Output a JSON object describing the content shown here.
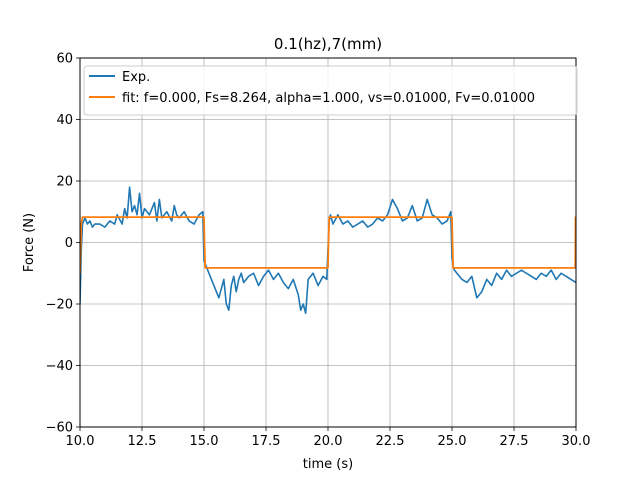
{
  "chart_data": {
    "type": "line",
    "title": "0.1(hz),7(mm)",
    "xlabel": "time (s)",
    "ylabel": "Force (N)",
    "xlim": [
      10.0,
      30.0
    ],
    "ylim": [
      -60,
      60
    ],
    "xticks": [
      10.0,
      12.5,
      15.0,
      17.5,
      20.0,
      22.5,
      25.0,
      27.5,
      30.0
    ],
    "xtick_labels": [
      "10.0",
      "12.5",
      "15.0",
      "17.5",
      "20.0",
      "22.5",
      "25.0",
      "27.5",
      "30.0"
    ],
    "yticks": [
      -60,
      -40,
      -20,
      0,
      20,
      40,
      60
    ],
    "ytick_labels": [
      "−60",
      "−40",
      "−20",
      "0",
      "20",
      "40",
      "60"
    ],
    "grid": true,
    "legend_position": "top-left",
    "series": [
      {
        "name": "Exp.",
        "color": "#1f77b4",
        "x": [
          10.0,
          10.05,
          10.1,
          10.2,
          10.3,
          10.4,
          10.5,
          10.6,
          10.8,
          11.0,
          11.2,
          11.4,
          11.5,
          11.7,
          11.8,
          11.9,
          12.0,
          12.1,
          12.2,
          12.3,
          12.4,
          12.5,
          12.6,
          12.8,
          13.0,
          13.1,
          13.2,
          13.3,
          13.5,
          13.7,
          13.8,
          13.9,
          14.0,
          14.2,
          14.4,
          14.6,
          14.8,
          14.95,
          15.0,
          15.05,
          15.1,
          15.2,
          15.4,
          15.6,
          15.8,
          15.9,
          16.0,
          16.1,
          16.2,
          16.3,
          16.4,
          16.5,
          16.6,
          16.8,
          17.0,
          17.2,
          17.4,
          17.6,
          17.8,
          18.0,
          18.2,
          18.4,
          18.6,
          18.8,
          18.9,
          19.0,
          19.1,
          19.2,
          19.4,
          19.6,
          19.8,
          19.95,
          20.0,
          20.05,
          20.1,
          20.2,
          20.4,
          20.6,
          20.8,
          21.0,
          21.2,
          21.4,
          21.6,
          21.8,
          22.0,
          22.2,
          22.4,
          22.6,
          22.8,
          23.0,
          23.2,
          23.4,
          23.6,
          23.8,
          24.0,
          24.2,
          24.4,
          24.6,
          24.8,
          24.95,
          25.0,
          25.05,
          25.1,
          25.2,
          25.4,
          25.6,
          25.8,
          26.0,
          26.2,
          26.4,
          26.6,
          26.8,
          27.0,
          27.2,
          27.4,
          27.6,
          27.8,
          28.0,
          28.2,
          28.4,
          28.6,
          28.8,
          29.0,
          29.2,
          29.4,
          29.6,
          29.8,
          30.0
        ],
        "y": [
          -20,
          -3,
          6,
          8,
          6,
          7,
          5,
          6,
          6,
          5,
          7,
          6,
          9,
          6,
          11,
          8,
          18,
          10,
          12,
          9,
          16,
          8,
          11,
          9,
          13,
          7,
          14,
          8,
          10,
          7,
          12,
          9,
          8,
          10,
          7,
          6,
          9,
          10,
          -6,
          -7,
          -8,
          -10,
          -14,
          -18,
          -12,
          -20,
          -22,
          -14,
          -11,
          -16,
          -12,
          -10,
          -13,
          -11,
          -10,
          -14,
          -11,
          -9,
          -12,
          -10,
          -13,
          -15,
          -12,
          -17,
          -22,
          -20,
          -23,
          -12,
          -10,
          -14,
          -11,
          -12,
          -2,
          7,
          9,
          6,
          9,
          6,
          7,
          5,
          6,
          7,
          5,
          6,
          8,
          7,
          9,
          14,
          11,
          7,
          8,
          12,
          7,
          8,
          14,
          9,
          8,
          6,
          7,
          10,
          -5,
          -8,
          -9,
          -10,
          -12,
          -13,
          -11,
          -18,
          -16,
          -12,
          -14,
          -10,
          -12,
          -9,
          -11,
          -10,
          -9,
          -10,
          -11,
          -12,
          -10,
          -11,
          -9,
          -12,
          -10,
          -11,
          -12,
          -13
        ],
        "width": 1.6
      },
      {
        "name": "fit: f=0.000, Fs=8.264, alpha=1.000, vs=0.01000, Fv=0.01000",
        "color": "#ff7f0e",
        "x": [
          10.0,
          10.05,
          10.1,
          15.0,
          15.02,
          15.05,
          20.0,
          20.02,
          20.05,
          25.0,
          25.02,
          25.05,
          29.97,
          29.98,
          30.0
        ],
        "y": [
          -10,
          6,
          8.264,
          8.264,
          0,
          -8.264,
          -8.264,
          0,
          8.264,
          8.264,
          0,
          -8.264,
          -8.264,
          8.264,
          8.264
        ],
        "width": 1.8
      }
    ]
  }
}
